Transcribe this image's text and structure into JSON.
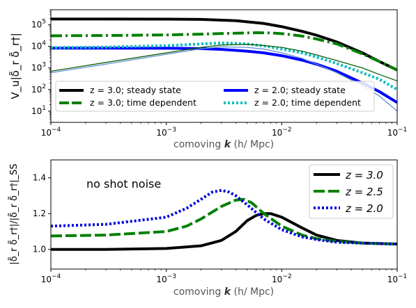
{
  "chart_data": [
    {
      "type": "line",
      "xlabel_prefix": "comoving ",
      "xlabel_k": "k",
      "xlabel_suffix": " (h/ Mpc)",
      "ylabel": "V_u|δ̃_r δ̃_r†|",
      "xscale": "log",
      "yscale": "log",
      "xlim": [
        0.0001,
        0.1
      ],
      "ylim": [
        3,
        500000
      ],
      "x_ticks": [
        {
          "value": 0.0001,
          "base": "10",
          "exp": "−4"
        },
        {
          "value": 0.001,
          "base": "10",
          "exp": "−3"
        },
        {
          "value": 0.01,
          "base": "10",
          "exp": "−2"
        },
        {
          "value": 0.1,
          "base": "10",
          "exp": "−1"
        }
      ],
      "y_ticks": [
        {
          "value": 10,
          "base": "10",
          "exp": "1"
        },
        {
          "value": 100,
          "base": "10",
          "exp": "2"
        },
        {
          "value": 1000,
          "base": "10",
          "exp": "3"
        },
        {
          "value": 10000,
          "base": "10",
          "exp": "4"
        },
        {
          "value": 100000,
          "base": "10",
          "exp": "5"
        }
      ],
      "grid": false,
      "legend_position": "lower-center",
      "series": [
        {
          "name": "z = 3.0; steady state",
          "color": "#000000",
          "style": "solid",
          "in_legend": true,
          "x": [
            0.0001,
            0.0003,
            0.001,
            0.002,
            0.004,
            0.007,
            0.01,
            0.015,
            0.02,
            0.03,
            0.05,
            0.07,
            0.1
          ],
          "y": [
            185000,
            185000,
            183000,
            178000,
            155000,
            115000,
            82000,
            50000,
            33000,
            16000,
            5000,
            2000,
            800
          ]
        },
        {
          "name": "z = 3.0; time dependent",
          "color": "#008000",
          "style": "dashdot",
          "in_legend": true,
          "x": [
            0.0001,
            0.0003,
            0.001,
            0.002,
            0.004,
            0.006,
            0.008,
            0.01,
            0.015,
            0.02,
            0.03,
            0.05,
            0.07,
            0.1
          ],
          "y": [
            31000,
            32000,
            34000,
            37000,
            41000,
            43000,
            42000,
            39000,
            30000,
            22000,
            13000,
            4500,
            2000,
            800
          ]
        },
        {
          "name": "z = 2.0; steady state",
          "color": "#0000ff",
          "style": "solid",
          "in_legend": true,
          "x": [
            0.0001,
            0.0003,
            0.001,
            0.002,
            0.003,
            0.005,
            0.007,
            0.01,
            0.015,
            0.02,
            0.03,
            0.05,
            0.07,
            0.1
          ],
          "y": [
            8300,
            8300,
            8200,
            7900,
            7300,
            6000,
            5000,
            3700,
            2300,
            1500,
            700,
            200,
            80,
            25
          ]
        },
        {
          "name": "z = 2.0; time dependent",
          "color": "#00bfbf",
          "style": "dotted",
          "in_legend": true,
          "x": [
            0.0001,
            0.0003,
            0.001,
            0.002,
            0.0032,
            0.005,
            0.007,
            0.01,
            0.015,
            0.02,
            0.03,
            0.05,
            0.07,
            0.1
          ],
          "y": [
            8700,
            9300,
            10800,
            13000,
            14500,
            13000,
            10500,
            7500,
            5000,
            3200,
            1600,
            600,
            300,
            100
          ]
        },
        {
          "name": "",
          "color": "#0b5d0b",
          "style": "solid-thin",
          "in_legend": false,
          "x": [
            0.0001,
            0.0003,
            0.001,
            0.002,
            0.003,
            0.005,
            0.007,
            0.01,
            0.015,
            0.02,
            0.03,
            0.05,
            0.07,
            0.1
          ],
          "y": [
            700,
            1800,
            5000,
            9000,
            11500,
            12500,
            11000,
            9000,
            6000,
            4000,
            2200,
            1000,
            500,
            250
          ]
        },
        {
          "name": "",
          "color": "#5f8fd0",
          "style": "solid-thin",
          "in_legend": false,
          "x": [
            0.0001,
            0.0003,
            0.001,
            0.002,
            0.003,
            0.005,
            0.007,
            0.01,
            0.015,
            0.02,
            0.03,
            0.05,
            0.07,
            0.1
          ],
          "y": [
            600,
            1500,
            4300,
            7800,
            9500,
            9000,
            7500,
            5000,
            2800,
            1500,
            600,
            150,
            50,
            10
          ]
        }
      ]
    },
    {
      "type": "line",
      "xlabel_prefix": "comoving ",
      "xlabel_k": "k",
      "xlabel_suffix": " (h/ Mpc)",
      "ylabel": "|δ̃_r δ̃_r†|/|δ̃_r δ̃_r†|_SS",
      "xscale": "log",
      "xlim": [
        0.0001,
        0.1
      ],
      "ylim": [
        0.89,
        1.5
      ],
      "x_ticks": [
        {
          "value": 0.0001,
          "base": "10",
          "exp": "−4"
        },
        {
          "value": 0.001,
          "base": "10",
          "exp": "−3"
        },
        {
          "value": 0.01,
          "base": "10",
          "exp": "−2"
        },
        {
          "value": 0.1,
          "base": "10",
          "exp": "−1"
        }
      ],
      "y_ticks": [
        {
          "value": 1.0,
          "label": "1.0"
        },
        {
          "value": 1.2,
          "label": "1.2"
        },
        {
          "value": 1.4,
          "label": "1.4"
        }
      ],
      "annotation": "no shot noise",
      "grid": false,
      "legend_position": "upper-right",
      "series": [
        {
          "name": "z = 3.0",
          "color": "#000000",
          "style": "solid",
          "x": [
            0.0001,
            0.0003,
            0.001,
            0.002,
            0.003,
            0.004,
            0.005,
            0.006,
            0.007,
            0.008,
            0.01,
            0.015,
            0.02,
            0.03,
            0.05,
            0.1
          ],
          "y": [
            1.0,
            1.0,
            1.005,
            1.02,
            1.05,
            1.1,
            1.16,
            1.19,
            1.2,
            1.2,
            1.18,
            1.12,
            1.08,
            1.05,
            1.035,
            1.03
          ]
        },
        {
          "name": "z = 2.5",
          "color": "#008000",
          "style": "dashed",
          "x": [
            0.0001,
            0.0003,
            0.001,
            0.0015,
            0.002,
            0.003,
            0.004,
            0.0047,
            0.0055,
            0.007,
            0.01,
            0.015,
            0.02,
            0.03,
            0.05,
            0.1
          ],
          "y": [
            1.075,
            1.08,
            1.1,
            1.13,
            1.17,
            1.24,
            1.275,
            1.28,
            1.26,
            1.2,
            1.13,
            1.08,
            1.06,
            1.045,
            1.035,
            1.03
          ]
        },
        {
          "name": "z = 2.0",
          "color": "#0000dd",
          "style": "dotted",
          "x": [
            0.0001,
            0.0003,
            0.001,
            0.0015,
            0.002,
            0.0025,
            0.003,
            0.0035,
            0.004,
            0.005,
            0.007,
            0.01,
            0.015,
            0.02,
            0.03,
            0.05,
            0.1
          ],
          "y": [
            1.13,
            1.14,
            1.18,
            1.23,
            1.28,
            1.32,
            1.33,
            1.32,
            1.3,
            1.25,
            1.17,
            1.11,
            1.07,
            1.055,
            1.04,
            1.035,
            1.03
          ]
        }
      ]
    }
  ]
}
